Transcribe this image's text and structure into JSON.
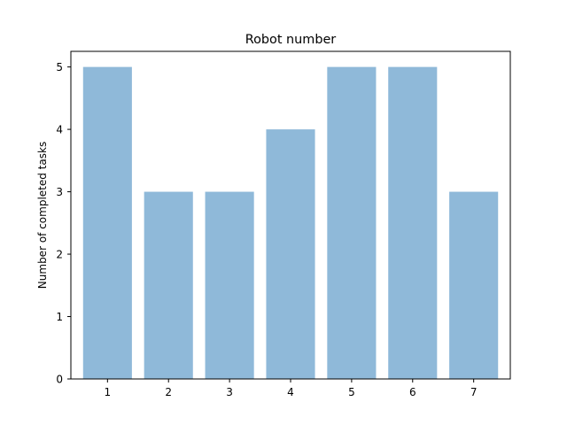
{
  "chart_data": {
    "type": "bar",
    "title": "Robot number",
    "xlabel": "",
    "ylabel": "Number of completed tasks",
    "categories": [
      "1",
      "2",
      "3",
      "4",
      "5",
      "6",
      "7"
    ],
    "values": [
      5,
      3,
      3,
      4,
      5,
      5,
      3
    ],
    "ylim": [
      0,
      5.25
    ],
    "yticks": [
      "0",
      "1",
      "2",
      "3",
      "4",
      "5"
    ],
    "bar_color": "#8fb9d9",
    "grid": false,
    "legend": "none"
  }
}
